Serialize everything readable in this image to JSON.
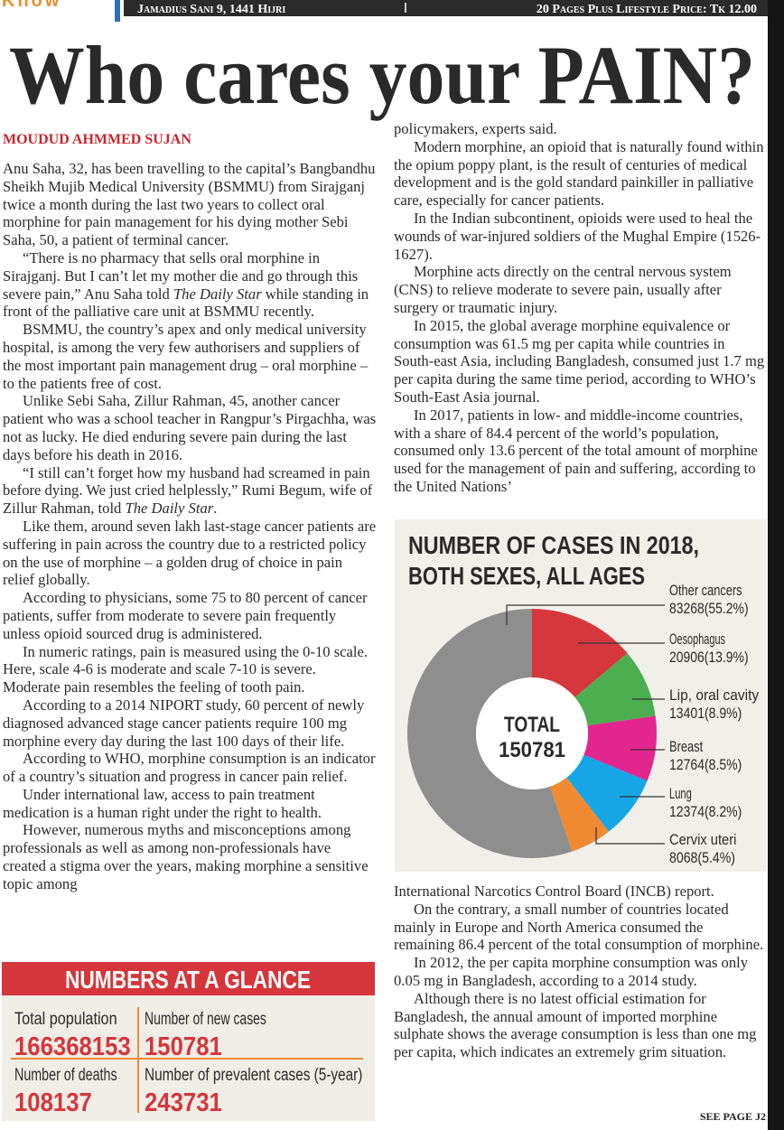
{
  "masthead": {
    "section": "Know",
    "date": "Jamadius Sani 9, 1441 Hijri",
    "price": "20 Pages Plus Lifestyle Price: Tk 12.00"
  },
  "article": {
    "title": "Who cares your PAIN?",
    "byline": "MOUDUD AHMMED SUJAN",
    "left": [
      "Anu Saha, 32, has been travelling to the capital’s Bangbandhu Sheikh Mujib Medical University (BSMMU) from Sirajganj twice a month during the last two years to collect oral morphine for pain management for his dying mother Sebi Saha, 50, a patient of terminal cancer.",
      [
        "“There is no pharmacy that sells oral morphine in Sirajganj. But I can’t let my mother die and go through this severe pain,” Anu Saha told ",
        "The Daily Star",
        " while standing in front of the palliative care unit at BSMMU recently."
      ],
      "BSMMU, the country’s apex and only medical university hospital, is among the very few authorisers and suppliers of the most important pain management drug – oral morphine – to the patients free of cost.",
      "Unlike Sebi Saha, Zillur Rahman, 45, another cancer patient who was a school teacher in Rangpur’s Pirgachha, was not as lucky. He died enduring severe pain during the last days before his death in 2016.",
      [
        "“I still can’t forget how my husband had screamed in pain before dying. We just cried helplessly,” Rumi Begum, wife of Zillur Rahman, told ",
        "The Daily Star",
        "."
      ],
      "Like them, around seven lakh last-stage cancer patients are suffering in pain across the country due to a restricted policy on the use of morphine – a golden drug of choice in pain relief globally.",
      "According to physicians, some 75 to 80 percent of cancer patients, suffer from moderate to severe pain frequently unless opioid sourced drug is administered.",
      "In numeric ratings, pain is measured using the 0-10 scale. Here, scale 4-6 is moderate and scale 7-10 is severe. Moderate pain resembles the feeling of tooth pain.",
      "According to a 2014 NIPORT study, 60 percent of newly diagnosed advanced stage cancer patients require 100 mg morphine every day during the last 100 days of their life.",
      "According to WHO, morphine consumption is an indicator of a country’s situation and progress in cancer pain relief.",
      "Under international law, access to pain treatment medication is a human right under the right to health.",
      "However, numerous myths and misconceptions among professionals as well as among non-professionals have created a stigma over the years, making morphine a sensitive topic among"
    ],
    "right_top": [
      "policymakers, experts said.",
      "Modern morphine, an opioid that is naturally found within the opium poppy plant, is the result of centuries of medical development and is the gold standard painkiller in palliative care, especially for cancer patients.",
      "In the Indian subcontinent, opioids were used to heal the wounds of war-injured soldiers of the Mughal Empire (1526-1627).",
      "Morphine acts directly on the central nervous system (CNS) to relieve moderate to severe pain, usually after surgery or traumatic injury.",
      "In 2015, the global average morphine equivalence or consumption was 61.5 mg per capita while countries in South-east Asia, including Bangladesh, consumed just 1.7 mg per capita during the same time period, according to WHO’s South-East Asia journal.",
      "In 2017, patients in low- and middle-income countries, with a share of 84.4 percent of the world’s population, consumed only 13.6 percent of the total amount of morphine used for the management of pain and suffering, according to the United Nations’"
    ],
    "right_bottom": [
      "International Narcotics Control Board (INCB) report.",
      "On the contrary, a small number of countries located mainly in Europe and North America consumed the remaining 86.4 percent of the total consumption of morphine.",
      "In 2012, the per capita morphine consumption was only 0.05 mg in Bangladesh, according to a 2014 study.",
      "Although there is no latest official estimation for Bangladesh, the annual amount of imported morphine sulphate shows the average consumption is less than one mg per capita, which indicates an extremely grim situation."
    ],
    "see_page": "SEE PAGE J2"
  },
  "chart": {
    "type": "donut",
    "title_lines": [
      "NUMBER OF CASES IN 2018,",
      "BOTH SEXES, ALL AGES"
    ],
    "center_label": "TOTAL",
    "total": 150781,
    "categories": [
      "Other cancers",
      "Oesophagus",
      "Lip, oral cavity",
      "Breast",
      "Lung",
      "Cervix uteri"
    ],
    "values": [
      83268,
      20906,
      13401,
      12764,
      12374,
      8068
    ],
    "value_labels": [
      "83268(55.2%)",
      "20906(13.9%)",
      "13401(8.9%)",
      "12764(8.5%)",
      "12374(8.2%)",
      "8068(5.4%)"
    ],
    "colors": [
      "#8e8e8e",
      "#d5373d",
      "#4caf4f",
      "#e3268f",
      "#16a6e6",
      "#ef8a32"
    ]
  },
  "glance": {
    "title": "NUMBERS AT A GLANCE",
    "items": [
      {
        "label": "Total population",
        "value": 166368153
      },
      {
        "label": "Number of new cases",
        "value": 150781
      },
      {
        "label": "Number of deaths",
        "value": 108137
      },
      {
        "label": "Number of prevalent cases (5-year)",
        "value": 243731
      }
    ]
  }
}
